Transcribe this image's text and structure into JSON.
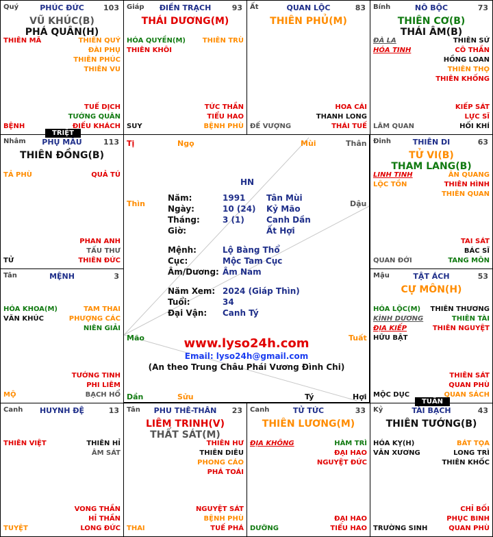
{
  "palaces": [
    {
      "id": "ty",
      "can": "Quý",
      "name": "PHÚC ĐỨC",
      "num": "103",
      "main": [
        {
          "t": "VŨ KHÚC(B)",
          "c": "gray"
        },
        {
          "t": "PHÁ QUÂN(H)",
          "c": "black"
        }
      ],
      "left": [
        {
          "t": "THIÊN MÃ",
          "c": "red"
        }
      ],
      "right": [
        {
          "t": "THIÊN QUÝ",
          "c": "orange"
        },
        {
          "t": "ĐÀI PHỤ",
          "c": "orange"
        },
        {
          "t": "THIÊN PHÚC",
          "c": "orange"
        },
        {
          "t": "THIÊN VU",
          "c": "orange"
        }
      ],
      "bl": [
        {
          "t": "BỆNH",
          "c": "red"
        }
      ],
      "br": [
        {
          "t": "TUẾ DỊCH",
          "c": "red"
        },
        {
          "t": "TƯỚNG QUÂN",
          "c": "green"
        },
        {
          "t": "ĐIẾU KHÁCH",
          "c": "red"
        }
      ]
    },
    {
      "id": "ngo",
      "can": "Giáp",
      "name": "ĐIỀN TRẠCH",
      "num": "93",
      "main": [
        {
          "t": "THÁI DƯƠNG(M)",
          "c": "red"
        }
      ],
      "left": [
        {
          "t": "HÓA QUYỀN(M)",
          "c": "green"
        },
        {
          "t": "THIÊN KHÔI",
          "c": "red"
        }
      ],
      "right": [
        {
          "t": "THIÊN TRÙ",
          "c": "orange"
        }
      ],
      "bl": [
        {
          "t": "SUY",
          "c": "black"
        }
      ],
      "br": [
        {
          "t": "TỨC THẦN",
          "c": "red"
        },
        {
          "t": "TIỂU HAO",
          "c": "red"
        },
        {
          "t": "BỆNH PHÙ",
          "c": "orange"
        }
      ]
    },
    {
      "id": "mui",
      "can": "Ất",
      "name": "QUAN LỘC",
      "num": "83",
      "main": [
        {
          "t": "THIÊN PHỦ(M)",
          "c": "orange"
        }
      ],
      "left": [],
      "right": [],
      "bl": [
        {
          "t": "ĐẾ VƯỢNG",
          "c": "gray"
        }
      ],
      "br": [
        {
          "t": "HOA CÁI",
          "c": "red"
        },
        {
          "t": "THANH LONG",
          "c": "black"
        },
        {
          "t": "THÁI TUẾ",
          "c": "red"
        }
      ]
    },
    {
      "id": "than",
      "can": "Bính",
      "name": "NÔ BỘC",
      "num": "73",
      "main": [
        {
          "t": "THIÊN CƠ(B)",
          "c": "green"
        },
        {
          "t": "THÁI ÂM(B)",
          "c": "black"
        }
      ],
      "left": [
        {
          "t": "ĐÀ LA",
          "c": "gray",
          "u": true
        },
        {
          "t": "HÓA TINH",
          "c": "red",
          "u": true
        }
      ],
      "right": [
        {
          "t": "THIÊN SỨ",
          "c": "black"
        },
        {
          "t": "CÔ THẦN",
          "c": "red"
        },
        {
          "t": "HỒNG LOAN",
          "c": "black"
        },
        {
          "t": "THIÊN THỌ",
          "c": "orange"
        },
        {
          "t": "THIÊN KHỐNG",
          "c": "red"
        }
      ],
      "bl": [
        {
          "t": "LÂM QUAN",
          "c": "gray"
        }
      ],
      "br": [
        {
          "t": "KIẾP SÁT",
          "c": "red"
        },
        {
          "t": "LỰC SĨ",
          "c": "red"
        },
        {
          "t": "HỐI KHÍ",
          "c": "black"
        }
      ]
    },
    {
      "id": "thin",
      "can": "Nhâm",
      "name": "PHỤ MẪU",
      "num": "113",
      "main": [
        {
          "t": "THIÊN ĐỒNG(B)",
          "c": "black"
        }
      ],
      "left": [
        {
          "t": "TẢ PHÙ",
          "c": "orange"
        }
      ],
      "right": [
        {
          "t": "QUẢ TÚ",
          "c": "red"
        }
      ],
      "bl": [
        {
          "t": "TỬ",
          "c": "black"
        }
      ],
      "br": [
        {
          "t": "PHAN ANH",
          "c": "red"
        },
        {
          "t": "TẤU THƯ",
          "c": "gray"
        },
        {
          "t": "THIÊN ĐỨC",
          "c": "red"
        }
      ]
    },
    {
      "id": "dau",
      "can": "Đinh",
      "name": "THIÊN DI",
      "num": "63",
      "main": [
        {
          "t": "TỬ VI(B)",
          "c": "orange"
        },
        {
          "t": "THAM LANG(B)",
          "c": "green"
        }
      ],
      "left": [
        {
          "t": "LINH TINH",
          "c": "red",
          "u": true
        },
        {
          "t": "LỘC TỒN",
          "c": "orange"
        }
      ],
      "right": [
        {
          "t": "ÂN QUANG",
          "c": "orange"
        },
        {
          "t": "THIÊN HÌNH",
          "c": "red"
        },
        {
          "t": "THIÊN QUAN",
          "c": "orange"
        }
      ],
      "bl": [
        {
          "t": "QUAN ĐỚI",
          "c": "gray"
        }
      ],
      "br": [
        {
          "t": "TAI SÁT",
          "c": "red"
        },
        {
          "t": "BÁC SĨ",
          "c": "black"
        },
        {
          "t": "TANG MÔN",
          "c": "green"
        }
      ]
    },
    {
      "id": "mao",
      "can": "Tân",
      "name": "MỆNH",
      "num": "3",
      "main": [],
      "left": [
        {
          "t": "HÓA KHOA(M)",
          "c": "green"
        },
        {
          "t": "VĂN KHÚC",
          "c": "black"
        }
      ],
      "right": [
        {
          "t": "TAM THAI",
          "c": "orange"
        },
        {
          "t": "PHƯỢNG CÁC",
          "c": "orange"
        },
        {
          "t": "NIÊN GIẢI",
          "c": "green"
        }
      ],
      "bl": [
        {
          "t": "MỘ",
          "c": "orange"
        }
      ],
      "br": [
        {
          "t": "TƯỚNG TINH",
          "c": "red"
        },
        {
          "t": "PHI LIÊM",
          "c": "red"
        },
        {
          "t": "BẠCH HỔ",
          "c": "gray"
        }
      ]
    },
    {
      "id": "tuat",
      "can": "Mậu",
      "name": "TẬT ÁCH",
      "num": "53",
      "main": [
        {
          "t": "CỰ MÔN(H)",
          "c": "orange"
        }
      ],
      "left": [
        {
          "t": "HÓA LỘC(M)",
          "c": "green"
        },
        {
          "t": "KÌNH DƯƠNG",
          "c": "gray",
          "u": true
        },
        {
          "t": "ĐỊA KIẾP",
          "c": "red",
          "u": true
        },
        {
          "t": "HỮU BẬT",
          "c": "black"
        }
      ],
      "right": [
        {
          "t": "THIÊN THƯƠNG",
          "c": "black"
        },
        {
          "t": "THIÊN TÀI",
          "c": "green"
        },
        {
          "t": "THIÊN NGUYỆT",
          "c": "red"
        }
      ],
      "bl": [
        {
          "t": "MỘC DỤC",
          "c": "black"
        }
      ],
      "br": [
        {
          "t": "THIÊN SÁT",
          "c": "red"
        },
        {
          "t": "QUAN PHÙ",
          "c": "red"
        },
        {
          "t": "QUAN SÁCH",
          "c": "orange"
        }
      ]
    },
    {
      "id": "dan",
      "can": "Canh",
      "name": "HUYNH ĐỆ",
      "num": "13",
      "main": [],
      "left": [
        {
          "t": "THIÊN VIỆT",
          "c": "red"
        }
      ],
      "right": [
        {
          "t": "THIÊN HỈ",
          "c": "black"
        },
        {
          "t": "ÂM SÁT",
          "c": "gray"
        }
      ],
      "bl": [
        {
          "t": "TUYỆT",
          "c": "orange"
        }
      ],
      "br": [
        {
          "t": "VONG THẦN",
          "c": "red"
        },
        {
          "t": "HỈ THẦN",
          "c": "red"
        },
        {
          "t": "LONG ĐỨC",
          "c": "red"
        }
      ]
    },
    {
      "id": "suu",
      "can": "Tân",
      "name": "PHU THÊ-THÂN",
      "num": "23",
      "main": [
        {
          "t": "LIÊM TRINH(V)",
          "c": "red"
        },
        {
          "t": "THẤT SÁT(M)",
          "c": "gray"
        }
      ],
      "left": [],
      "right": [
        {
          "t": "THIÊN HƯ",
          "c": "red"
        },
        {
          "t": "THIÊN DIÊU",
          "c": "black"
        },
        {
          "t": "PHONG CÁO",
          "c": "orange"
        },
        {
          "t": "PHÁ TOÁI",
          "c": "red"
        }
      ],
      "bl": [
        {
          "t": "THAI",
          "c": "orange"
        }
      ],
      "br": [
        {
          "t": "NGUYỆT SÁT",
          "c": "red"
        },
        {
          "t": "BỆNH PHÙ",
          "c": "orange"
        },
        {
          "t": "TUẾ PHÁ",
          "c": "red"
        }
      ]
    },
    {
      "id": "ty2",
      "can": "Canh",
      "name": "TỬ TỨC",
      "num": "33",
      "main": [
        {
          "t": "THIÊN LƯƠNG(M)",
          "c": "orange"
        }
      ],
      "left": [
        {
          "t": "ĐỊA KHÔNG",
          "c": "red",
          "u": true
        }
      ],
      "right": [
        {
          "t": "HÀM TRÌ",
          "c": "green"
        },
        {
          "t": "ĐẠI HAO",
          "c": "red"
        },
        {
          "t": "NGUYỆT ĐỨC",
          "c": "red"
        }
      ],
      "bl": [
        {
          "t": "DƯỠNG",
          "c": "green"
        }
      ],
      "br": [
        {
          "t": "ĐẠI HAO",
          "c": "red"
        },
        {
          "t": "TIỂU HAO",
          "c": "red"
        }
      ]
    },
    {
      "id": "hoi",
      "can": "Kỷ",
      "name": "TÀI BẠCH",
      "num": "43",
      "main": [
        {
          "t": "THIÊN TƯỚNG(B)",
          "c": "black"
        }
      ],
      "left": [
        {
          "t": "HÓA KỴ(H)",
          "c": "black"
        },
        {
          "t": "VĂN XƯƠNG",
          "c": "black"
        }
      ],
      "right": [
        {
          "t": "BÁT TỌA",
          "c": "orange"
        },
        {
          "t": "LONG TRÌ",
          "c": "black"
        },
        {
          "t": "THIÊN KHỐC",
          "c": "black"
        }
      ],
      "bl": [
        {
          "t": "TRƯỜNG SINH",
          "c": "black"
        }
      ],
      "br": [
        {
          "t": "CHỈ BỐI",
          "c": "red"
        },
        {
          "t": "PHỤC BINH",
          "c": "red"
        },
        {
          "t": "QUAN PHÙ",
          "c": "red"
        }
      ]
    }
  ],
  "tags": {
    "triet": "TRIỆT",
    "tuan": "TUẦN"
  },
  "center": {
    "branches": {
      "ti": "Tị",
      "ngo": "Ngọ",
      "mui": "Mùi",
      "than": "Thân",
      "thin": "Thìn",
      "dau": "Dậu",
      "mao": "Mão",
      "tuat": "Tuất",
      "dan": "Dần",
      "suu": "Sửu",
      "ty": "Tý",
      "hoi": "Hợi"
    },
    "place": "HN",
    "rows": [
      {
        "k": "Năm:",
        "v": "1991",
        "v2": "Tân Mùi"
      },
      {
        "k": "Ngày:",
        "v": "10 (24)",
        "v2": "Kỷ Mão"
      },
      {
        "k": "Tháng:",
        "v": "3 (1)",
        "v2": "Canh Dần"
      },
      {
        "k": "Giờ:",
        "v": "",
        "v2": "Ất Hợi"
      }
    ],
    "rows2": [
      {
        "k": "Mệnh:",
        "v": "Lộ Bàng Thổ"
      },
      {
        "k": "Cục:",
        "v": "Mộc Tam Cục"
      },
      {
        "k": "Âm/Dương:",
        "v": "Âm Nam"
      }
    ],
    "rows3": [
      {
        "k": "Năm Xem:",
        "v": "2024 (Giáp Thìn)"
      },
      {
        "k": "Tuổi:",
        "v": "34"
      },
      {
        "k": "Đại Vận:",
        "v": "Canh Tý"
      }
    ],
    "site": "www.lyso24h.com",
    "email": "Email: lyso24h@gmail.com",
    "note": "(An theo Trung Châu Phái Vương Đình Chi)"
  },
  "colors": {
    "red": "#e10000",
    "orange": "#ff8c00",
    "green": "#117a11",
    "blue": "#1f2f8a"
  }
}
